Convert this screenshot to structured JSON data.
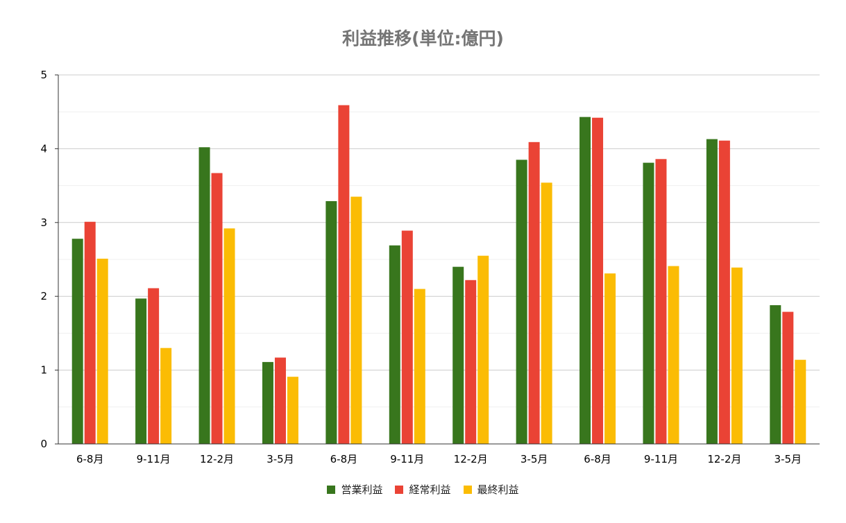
{
  "chart_data": {
    "type": "bar",
    "title": "利益推移(単位:億円)",
    "xlabel": "",
    "ylabel": "",
    "ylim": [
      0,
      5
    ],
    "yticks": [
      0,
      1,
      2,
      3,
      4,
      5
    ],
    "grid": true,
    "legend_position": "bottom",
    "categories": [
      "6-8月",
      "9-11月",
      "12-2月",
      "3-5月",
      "6-8月",
      "9-11月",
      "12-2月",
      "3-5月",
      "6-8月",
      "9-11月",
      "12-2月",
      "3-5月"
    ],
    "series": [
      {
        "name": "営業利益",
        "color": "#38761d",
        "values": [
          2.78,
          1.97,
          4.02,
          1.11,
          3.29,
          2.69,
          2.4,
          3.85,
          4.43,
          3.81,
          4.13,
          1.88
        ]
      },
      {
        "name": "経常利益",
        "color": "#ea4335",
        "values": [
          3.01,
          2.11,
          3.67,
          1.17,
          4.59,
          2.89,
          2.22,
          4.09,
          4.42,
          3.86,
          4.11,
          1.79
        ]
      },
      {
        "name": "最終利益",
        "color": "#fbbc04",
        "values": [
          2.51,
          1.3,
          2.92,
          0.91,
          3.35,
          2.1,
          2.55,
          3.54,
          2.31,
          2.41,
          2.39,
          1.14
        ]
      }
    ]
  }
}
